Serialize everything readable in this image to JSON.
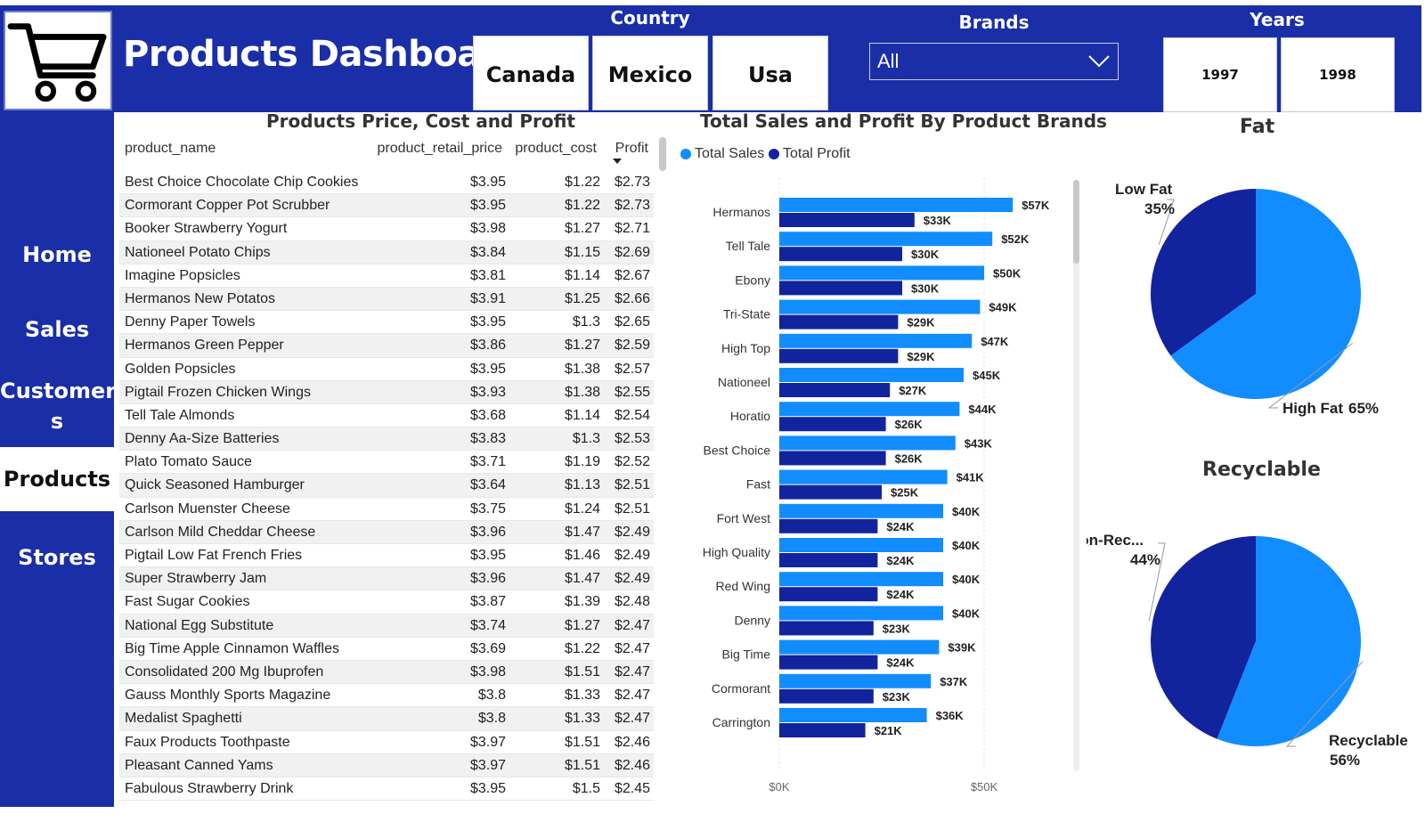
{
  "header": {
    "title": "Products Dashboard",
    "logo_icon": "shopping-cart-icon"
  },
  "filters": {
    "country": {
      "title": "Country",
      "options": [
        "Canada",
        "Mexico",
        "Usa"
      ]
    },
    "brands": {
      "title": "Brands",
      "selected": "All"
    },
    "years": {
      "title": "Years",
      "options": [
        "1997",
        "1998"
      ]
    }
  },
  "nav": {
    "items": [
      {
        "label": "Home",
        "active": false
      },
      {
        "label": "Sales",
        "active": false
      },
      {
        "label": "Customer\ns",
        "active": false
      },
      {
        "label": "Products",
        "active": true
      },
      {
        "label": "Stores",
        "active": false
      }
    ]
  },
  "products_table": {
    "title": "Products Price, Cost and Profit",
    "columns": [
      "product_name",
      "product_retail_price",
      "product_cost",
      "Profit"
    ],
    "rows": [
      [
        "Best Choice Chocolate Chip Cookies",
        "$3.95",
        "$1.22",
        "$2.73"
      ],
      [
        "Cormorant Copper Pot Scrubber",
        "$3.95",
        "$1.22",
        "$2.73"
      ],
      [
        "Booker Strawberry Yogurt",
        "$3.98",
        "$1.27",
        "$2.71"
      ],
      [
        "Nationeel Potato Chips",
        "$3.84",
        "$1.15",
        "$2.69"
      ],
      [
        "Imagine Popsicles",
        "$3.81",
        "$1.14",
        "$2.67"
      ],
      [
        "Hermanos New Potatos",
        "$3.91",
        "$1.25",
        "$2.66"
      ],
      [
        "Denny Paper Towels",
        "$3.95",
        "$1.3",
        "$2.65"
      ],
      [
        "Hermanos Green Pepper",
        "$3.86",
        "$1.27",
        "$2.59"
      ],
      [
        "Golden Popsicles",
        "$3.95",
        "$1.38",
        "$2.57"
      ],
      [
        "Pigtail Frozen Chicken Wings",
        "$3.93",
        "$1.38",
        "$2.55"
      ],
      [
        "Tell Tale Almonds",
        "$3.68",
        "$1.14",
        "$2.54"
      ],
      [
        "Denny Aa-Size Batteries",
        "$3.83",
        "$1.3",
        "$2.53"
      ],
      [
        "Plato Tomato Sauce",
        "$3.71",
        "$1.19",
        "$2.52"
      ],
      [
        "Quick Seasoned Hamburger",
        "$3.64",
        "$1.13",
        "$2.51"
      ],
      [
        "Carlson Muenster Cheese",
        "$3.75",
        "$1.24",
        "$2.51"
      ],
      [
        "Carlson Mild Cheddar Cheese",
        "$3.96",
        "$1.47",
        "$2.49"
      ],
      [
        "Pigtail Low Fat French Fries",
        "$3.95",
        "$1.46",
        "$2.49"
      ],
      [
        "Super Strawberry Jam",
        "$3.96",
        "$1.47",
        "$2.49"
      ],
      [
        "Fast Sugar Cookies",
        "$3.87",
        "$1.39",
        "$2.48"
      ],
      [
        "National Egg Substitute",
        "$3.74",
        "$1.27",
        "$2.47"
      ],
      [
        "Big Time Apple Cinnamon Waffles",
        "$3.69",
        "$1.22",
        "$2.47"
      ],
      [
        "Consolidated 200 Mg Ibuprofen",
        "$3.98",
        "$1.51",
        "$2.47"
      ],
      [
        "Gauss Monthly Sports Magazine",
        "$3.8",
        "$1.33",
        "$2.47"
      ],
      [
        "Medalist Spaghetti",
        "$3.8",
        "$1.33",
        "$2.47"
      ],
      [
        "Faux Products Toothpaste",
        "$3.97",
        "$1.51",
        "$2.46"
      ],
      [
        "Pleasant Canned Yams",
        "$3.97",
        "$1.51",
        "$2.46"
      ],
      [
        "Fabulous Strawberry Drink",
        "$3.95",
        "$1.5",
        "$2.45"
      ]
    ]
  },
  "chart_data": [
    {
      "type": "bar",
      "orientation": "horizontal",
      "title": "Total Sales and Profit By Product Brands",
      "categories": [
        "Hermanos",
        "Tell Tale",
        "Ebony",
        "Tri-State",
        "High Top",
        "Nationeel",
        "Horatio",
        "Best Choice",
        "Fast",
        "Fort West",
        "High Quality",
        "Red Wing",
        "Denny",
        "Big Time",
        "Cormorant",
        "Carrington"
      ],
      "series": [
        {
          "name": "Total Sales",
          "color": "#118dff",
          "values": [
            57,
            52,
            50,
            49,
            47,
            45,
            44,
            43,
            41,
            40,
            40,
            40,
            40,
            39,
            37,
            36
          ],
          "labels": [
            "$57K",
            "$52K",
            "$50K",
            "$49K",
            "$47K",
            "$45K",
            "$44K",
            "$43K",
            "$41K",
            "$40K",
            "$40K",
            "$40K",
            "$40K",
            "$39K",
            "$37K",
            "$36K"
          ]
        },
        {
          "name": "Total Profit",
          "color": "#12239e",
          "values": [
            33,
            30,
            30,
            29,
            29,
            27,
            26,
            26,
            25,
            24,
            24,
            24,
            23,
            24,
            23,
            21
          ],
          "labels": [
            "$33K",
            "$30K",
            "$30K",
            "$29K",
            "$29K",
            "$27K",
            "$26K",
            "$26K",
            "$25K",
            "$24K",
            "$24K",
            "$24K",
            "$23K",
            "$24K",
            "$23K",
            "$21K"
          ]
        }
      ],
      "xaxis": {
        "unit": "thousands USD",
        "ticks": [
          0,
          50
        ],
        "tick_labels": [
          "$0K",
          "$50K"
        ],
        "xlim": [
          0,
          64
        ]
      },
      "legend": "top-left"
    },
    {
      "type": "pie",
      "title": "Fat",
      "slices": [
        {
          "label": "Low Fat",
          "pct_label": "35%",
          "value": 35,
          "color": "#12239e"
        },
        {
          "label": "High Fat",
          "pct_label": "65%",
          "value": 65,
          "color": "#118dff"
        }
      ]
    },
    {
      "type": "pie",
      "title": "Recyclable",
      "slices": [
        {
          "label": "Non-Rec...",
          "pct_label": "44%",
          "value": 44,
          "color": "#12239e"
        },
        {
          "label": "Recyclable",
          "pct_label": "56%",
          "value": 56,
          "color": "#118dff"
        }
      ]
    }
  ]
}
